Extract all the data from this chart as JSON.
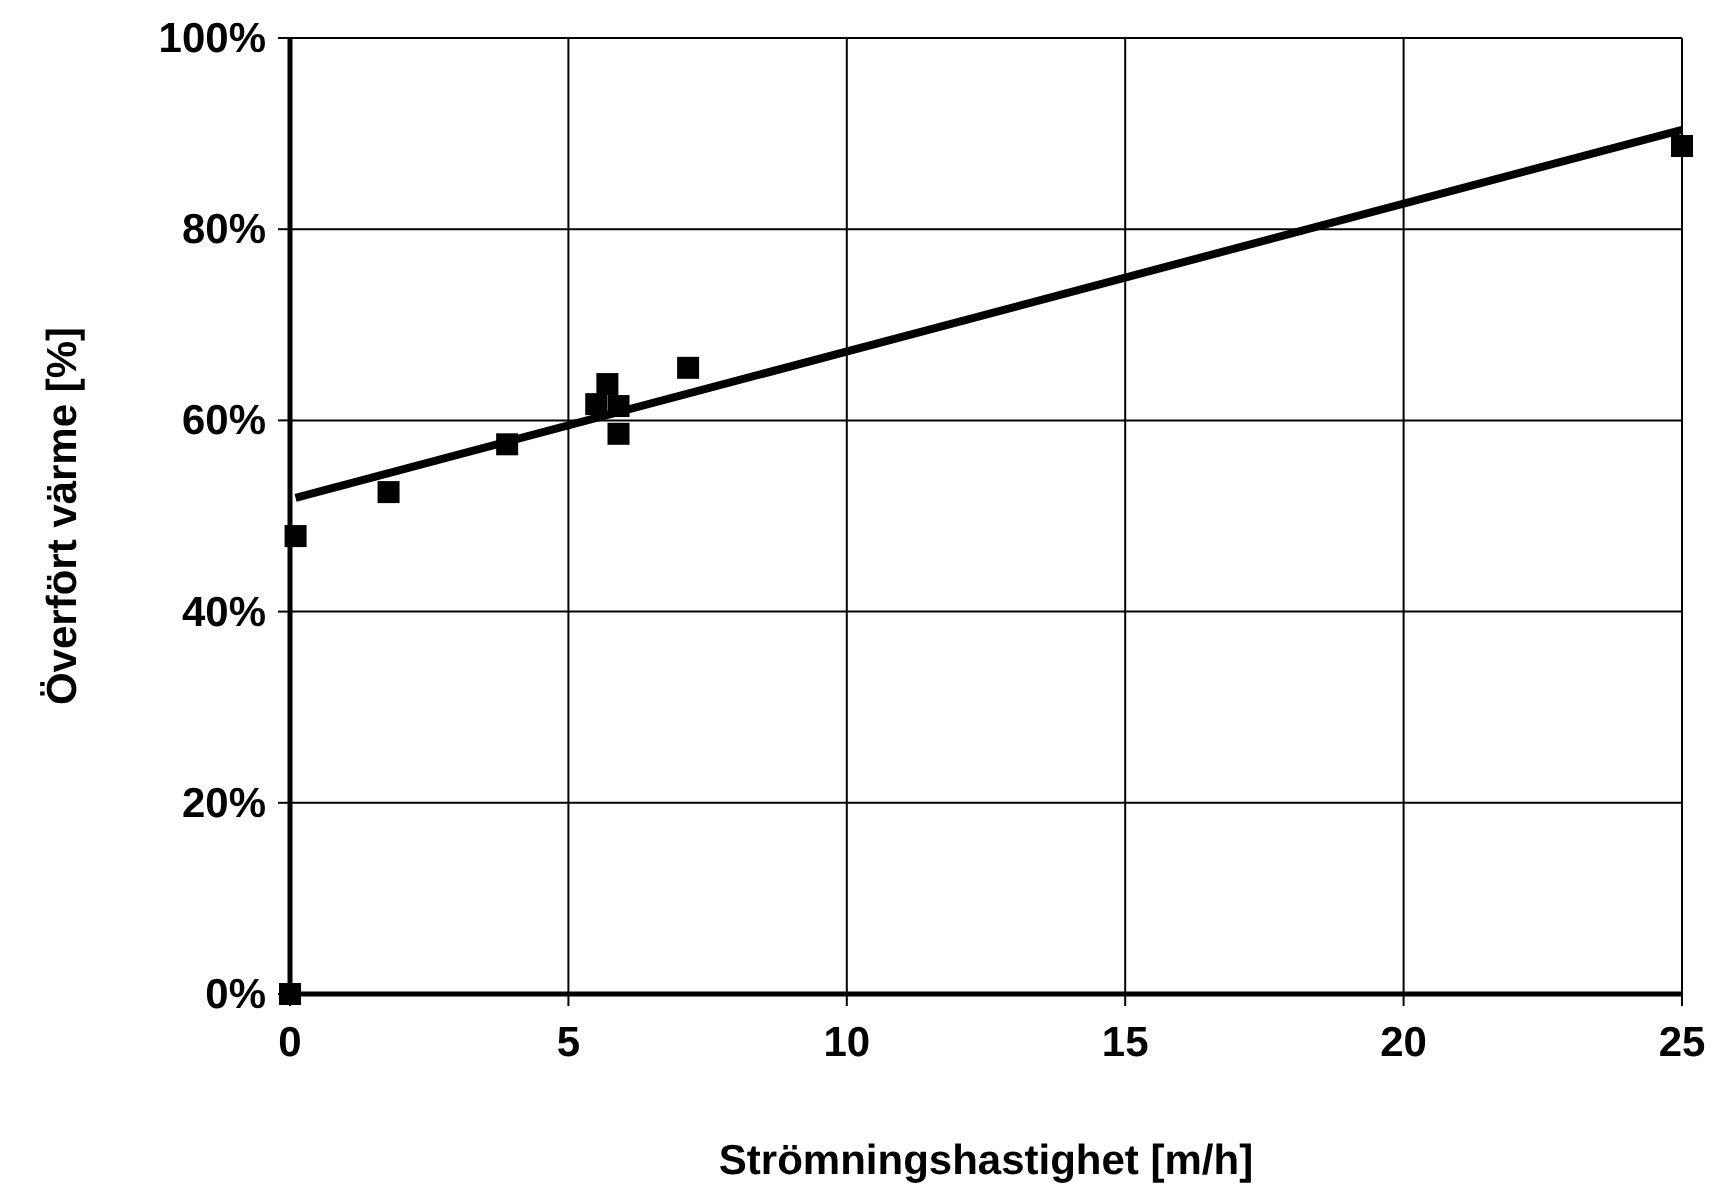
{
  "chart_data": {
    "type": "scatter",
    "xlabel": "Strömningshastighet [m/h]",
    "ylabel": "Överfört värme [%]",
    "xlim": [
      0,
      25
    ],
    "xticks": [
      0,
      5,
      10,
      15,
      20,
      25
    ],
    "ylim": [
      0,
      100
    ],
    "yticks": [
      {
        "value": 0,
        "label": "0%"
      },
      {
        "value": 20,
        "label": "20%"
      },
      {
        "value": 40,
        "label": "40%"
      },
      {
        "value": 60,
        "label": "60%"
      },
      {
        "value": 80,
        "label": "80%"
      },
      {
        "value": 100,
        "label": "100%"
      }
    ],
    "grid": true,
    "marker": "square",
    "series": [
      {
        "color": "#000000",
        "x": [
          0,
          0.1,
          1.77,
          3.9,
          5.5,
          5.7,
          5.9,
          5.9,
          7.15,
          25
        ],
        "values": [
          0,
          47.9,
          52.5,
          57.5,
          61.7,
          63.8,
          61.5,
          58.6,
          65.5,
          88.7
        ]
      },
      {
        "type": "line",
        "color": "#000000",
        "marker": "none",
        "line_style": "solid",
        "x": [
          0.1,
          25
        ],
        "values": [
          51.9,
          90.4
        ]
      }
    ]
  }
}
